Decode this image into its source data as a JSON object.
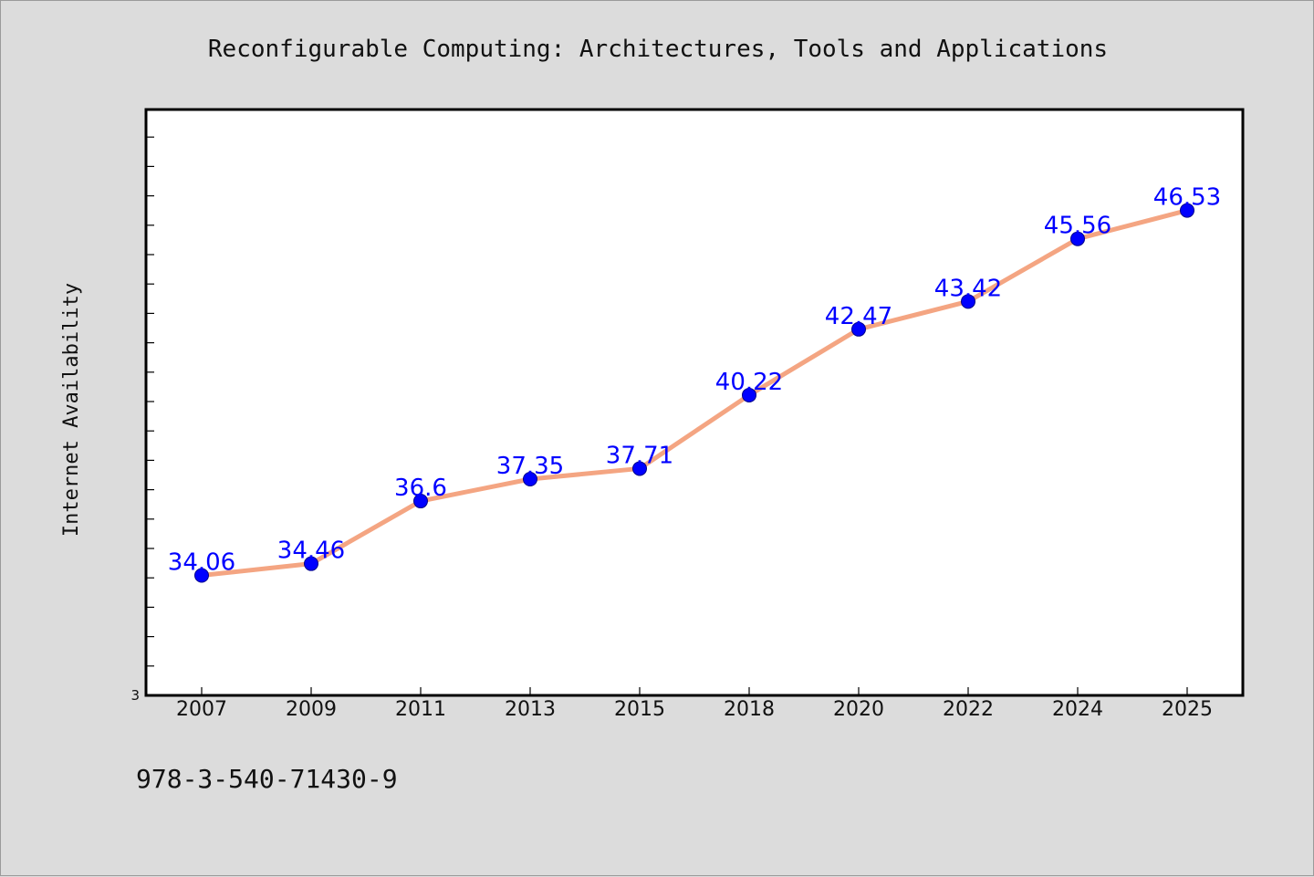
{
  "chart_data": {
    "type": "line",
    "title": "Reconfigurable Computing: Architectures, Tools and Applications",
    "xlabel": "",
    "ylabel": "Internet Availability",
    "categories": [
      "2007",
      "2009",
      "2011",
      "2013",
      "2015",
      "2018",
      "2020",
      "2022",
      "2024",
      "2025"
    ],
    "series": [
      {
        "values": [
          34.06,
          34.46,
          36.6,
          37.35,
          37.71,
          40.22,
          42.47,
          43.42,
          45.56,
          46.53
        ],
        "labels": [
          "34.06",
          "34.46",
          "36.6",
          "37.35",
          "37.71",
          "40.22",
          "42.47",
          "43.42",
          "45.56",
          "46.53"
        ],
        "line_color": "#f4a582",
        "marker_color": "#0000ff",
        "label_color": "#0000ff"
      }
    ],
    "y_axis_min_label": "3",
    "grid": false,
    "legend": "none"
  },
  "footer": {
    "isbn": "978-3-540-71430-9"
  },
  "colors": {
    "background": "#dcdcdc",
    "plot_background": "#ffffff",
    "axis": "#000000"
  }
}
